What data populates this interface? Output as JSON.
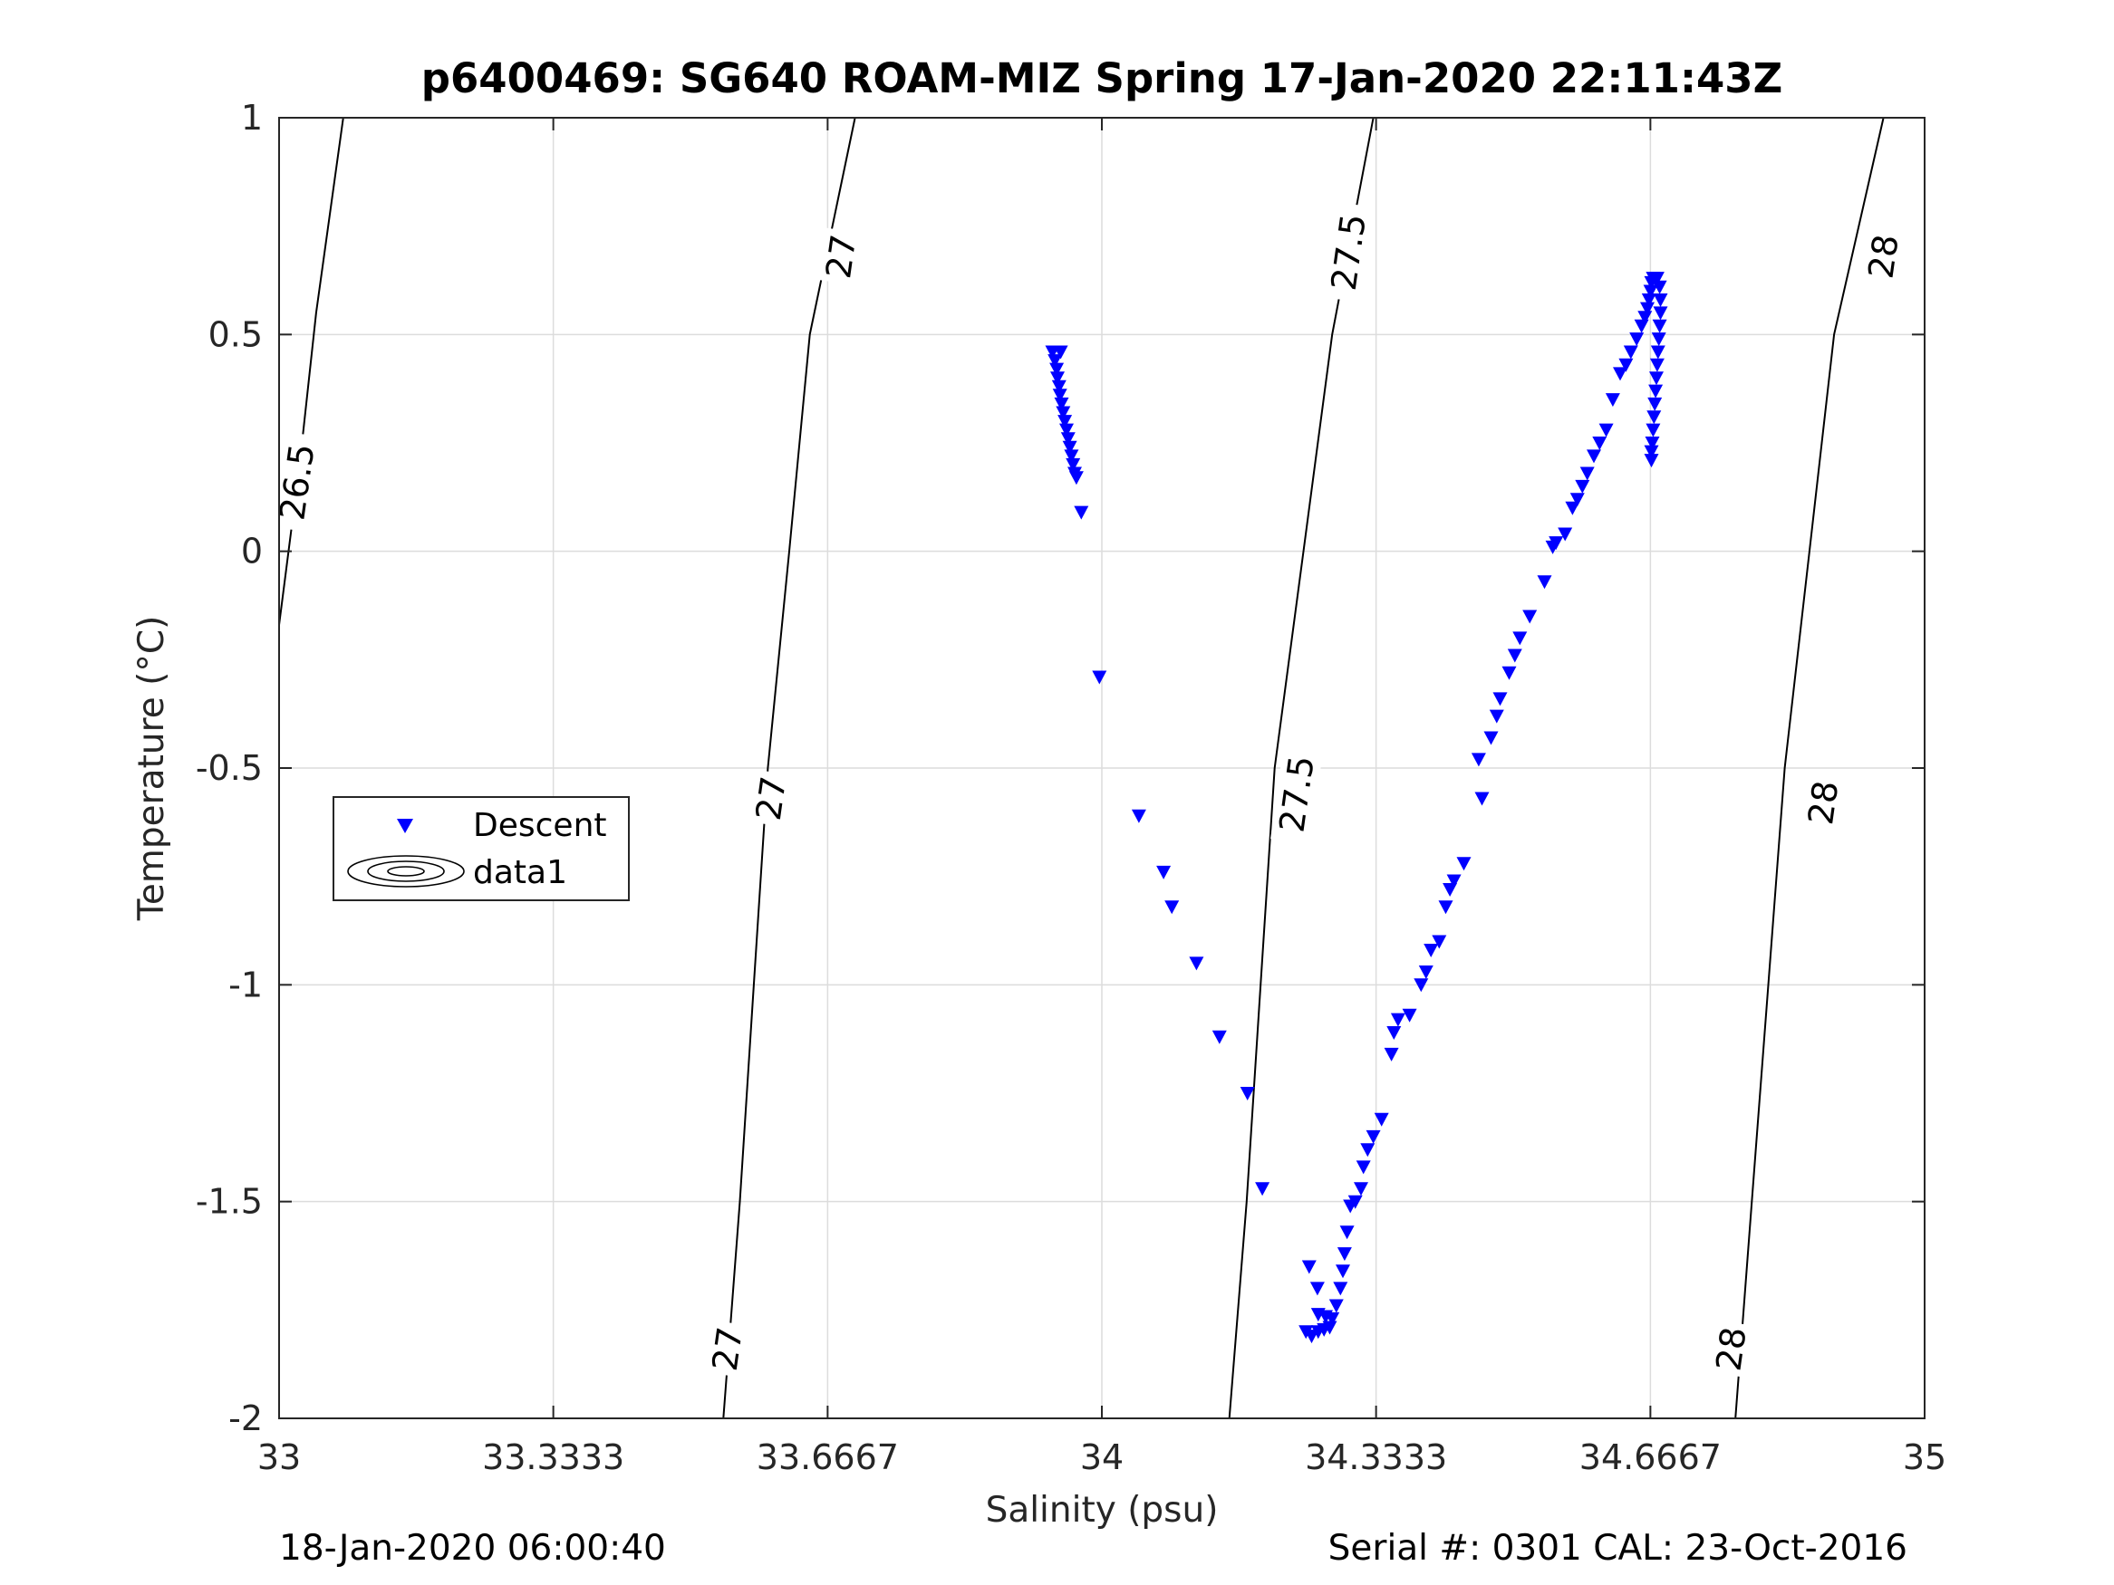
{
  "chart_data": {
    "type": "scatter",
    "title": "p6400469: SG640 ROAM-MIZ Spring 17-Jan-2020 22:11:43Z",
    "xlabel": "Salinity (psu)",
    "ylabel": "Temperature (°C)",
    "xlim": [
      33,
      35
    ],
    "ylim": [
      -2,
      1
    ],
    "x_ticks": [
      33,
      33.3333,
      33.6667,
      34,
      34.3333,
      34.6667,
      35
    ],
    "x_tick_labels": [
      "33",
      "33.3333",
      "33.6667",
      "34",
      "34.3333",
      "34.6667",
      "35"
    ],
    "y_ticks": [
      -2,
      -1.5,
      -1,
      -0.5,
      0,
      0.5,
      1
    ],
    "y_tick_labels": [
      "-2",
      "-1.5",
      "-1",
      "-0.5",
      "0",
      "0.5",
      "1"
    ],
    "grid": true,
    "legend": {
      "position": "middle-left",
      "entries": [
        {
          "label": "Descent",
          "marker": "triangle-down",
          "color": "#0000ff"
        },
        {
          "label": "data1",
          "marker": "contour-ellipses",
          "color": "#000000"
        }
      ]
    },
    "footer_left": "18-Jan-2020 06:00:40",
    "footer_right": "Serial #: 0301  CAL: 23-Oct-2016",
    "contours": [
      {
        "level": "26.5",
        "points": [
          [
            33.0,
            -0.17
          ],
          [
            33.025,
            0.2
          ],
          [
            33.045,
            0.55
          ],
          [
            33.078,
            1.0
          ]
        ]
      },
      {
        "level": "27",
        "points": [
          [
            33.54,
            -2.0
          ],
          [
            33.56,
            -1.5
          ],
          [
            33.577,
            -1.0
          ],
          [
            33.594,
            -0.5
          ],
          [
            33.62,
            0.0
          ],
          [
            33.645,
            0.5
          ],
          [
            33.7,
            1.0
          ]
        ]
      },
      {
        "level": "27.5",
        "points": [
          [
            34.155,
            -2.0
          ],
          [
            34.176,
            -1.5
          ],
          [
            34.193,
            -1.0
          ],
          [
            34.21,
            -0.5
          ],
          [
            34.245,
            0.0
          ],
          [
            34.28,
            0.5
          ],
          [
            34.33,
            1.0
          ]
        ]
      },
      {
        "level": "28",
        "points": [
          [
            34.77,
            -2.0
          ],
          [
            34.79,
            -1.5
          ],
          [
            34.81,
            -1.0
          ],
          [
            34.83,
            -0.5
          ],
          [
            34.86,
            0.0
          ],
          [
            34.89,
            0.5
          ],
          [
            34.95,
            1.0
          ]
        ]
      }
    ],
    "contour_labels": [
      {
        "text": "26.5",
        "x": 33.022,
        "y": 0.16
      },
      {
        "text": "27",
        "x": 33.683,
        "y": 0.68
      },
      {
        "text": "27",
        "x": 33.598,
        "y": -0.57
      },
      {
        "text": "27",
        "x": 33.545,
        "y": -1.84
      },
      {
        "text": "27.5",
        "x": 34.3,
        "y": 0.69
      },
      {
        "text": "27.5",
        "x": 34.237,
        "y": -0.56
      },
      {
        "text": "28",
        "x": 34.95,
        "y": 0.68
      },
      {
        "text": "28",
        "x": 34.877,
        "y": -0.58
      },
      {
        "text": "28",
        "x": 34.765,
        "y": -1.84
      }
    ],
    "series": [
      {
        "name": "Descent",
        "marker": "triangle-down",
        "color": "#0000ff",
        "points": [
          [
            33.94,
            0.46
          ],
          [
            33.95,
            0.46
          ],
          [
            33.943,
            0.44
          ],
          [
            33.945,
            0.42
          ],
          [
            33.946,
            0.4
          ],
          [
            33.948,
            0.38
          ],
          [
            33.949,
            0.36
          ],
          [
            33.951,
            0.34
          ],
          [
            33.953,
            0.32
          ],
          [
            33.955,
            0.3
          ],
          [
            33.957,
            0.28
          ],
          [
            33.959,
            0.26
          ],
          [
            33.961,
            0.24
          ],
          [
            33.963,
            0.22
          ],
          [
            33.965,
            0.2
          ],
          [
            33.967,
            0.18
          ],
          [
            33.969,
            0.17
          ],
          [
            33.975,
            0.09
          ],
          [
            33.997,
            -0.29
          ],
          [
            34.045,
            -0.61
          ],
          [
            34.075,
            -0.74
          ],
          [
            34.085,
            -0.82
          ],
          [
            34.115,
            -0.95
          ],
          [
            34.143,
            -1.12
          ],
          [
            34.177,
            -1.25
          ],
          [
            34.195,
            -1.47
          ],
          [
            34.248,
            -1.8
          ],
          [
            34.255,
            -1.81
          ],
          [
            34.263,
            -1.8
          ],
          [
            34.27,
            -1.795
          ],
          [
            34.277,
            -1.79
          ],
          [
            34.263,
            -1.76
          ],
          [
            34.272,
            -1.765
          ],
          [
            34.28,
            -1.77
          ],
          [
            34.285,
            -1.74
          ],
          [
            34.29,
            -1.7
          ],
          [
            34.293,
            -1.66
          ],
          [
            34.295,
            -1.62
          ],
          [
            34.298,
            -1.57
          ],
          [
            34.252,
            -1.65
          ],
          [
            34.262,
            -1.7
          ],
          [
            34.302,
            -1.51
          ],
          [
            34.308,
            -1.5
          ],
          [
            34.315,
            -1.47
          ],
          [
            34.318,
            -1.42
          ],
          [
            34.323,
            -1.38
          ],
          [
            34.33,
            -1.35
          ],
          [
            34.34,
            -1.31
          ],
          [
            34.352,
            -1.16
          ],
          [
            34.355,
            -1.11
          ],
          [
            34.36,
            -1.08
          ],
          [
            34.374,
            -1.07
          ],
          [
            34.388,
            -1.0
          ],
          [
            34.394,
            -0.97
          ],
          [
            34.4,
            -0.92
          ],
          [
            34.41,
            -0.9
          ],
          [
            34.418,
            -0.82
          ],
          [
            34.423,
            -0.78
          ],
          [
            34.428,
            -0.76
          ],
          [
            34.44,
            -0.72
          ],
          [
            34.462,
            -0.57
          ],
          [
            34.458,
            -0.48
          ],
          [
            34.473,
            -0.43
          ],
          [
            34.48,
            -0.38
          ],
          [
            34.484,
            -0.34
          ],
          [
            34.495,
            -0.28
          ],
          [
            34.502,
            -0.24
          ],
          [
            34.508,
            -0.2
          ],
          [
            34.52,
            -0.15
          ],
          [
            34.538,
            -0.07
          ],
          [
            34.548,
            0.01
          ],
          [
            34.552,
            0.02
          ],
          [
            34.563,
            0.04
          ],
          [
            34.572,
            0.1
          ],
          [
            34.578,
            0.12
          ],
          [
            34.584,
            0.15
          ],
          [
            34.59,
            0.18
          ],
          [
            34.598,
            0.22
          ],
          [
            34.605,
            0.25
          ],
          [
            34.613,
            0.28
          ],
          [
            34.621,
            0.35
          ],
          [
            34.63,
            0.41
          ],
          [
            34.637,
            0.43
          ],
          [
            34.643,
            0.46
          ],
          [
            34.65,
            0.49
          ],
          [
            34.656,
            0.52
          ],
          [
            34.66,
            0.54
          ],
          [
            34.663,
            0.56
          ],
          [
            34.665,
            0.58
          ],
          [
            34.667,
            0.6
          ],
          [
            34.668,
            0.62
          ],
          [
            34.67,
            0.63
          ],
          [
            34.675,
            0.63
          ],
          [
            34.678,
            0.61
          ],
          [
            34.679,
            0.58
          ],
          [
            34.679,
            0.55
          ],
          [
            34.678,
            0.52
          ],
          [
            34.677,
            0.49
          ],
          [
            34.676,
            0.46
          ],
          [
            34.675,
            0.43
          ],
          [
            34.674,
            0.4
          ],
          [
            34.673,
            0.37
          ],
          [
            34.672,
            0.34
          ],
          [
            34.671,
            0.31
          ],
          [
            34.67,
            0.28
          ],
          [
            34.669,
            0.25
          ],
          [
            34.668,
            0.23
          ],
          [
            34.668,
            0.21
          ]
        ]
      }
    ]
  }
}
